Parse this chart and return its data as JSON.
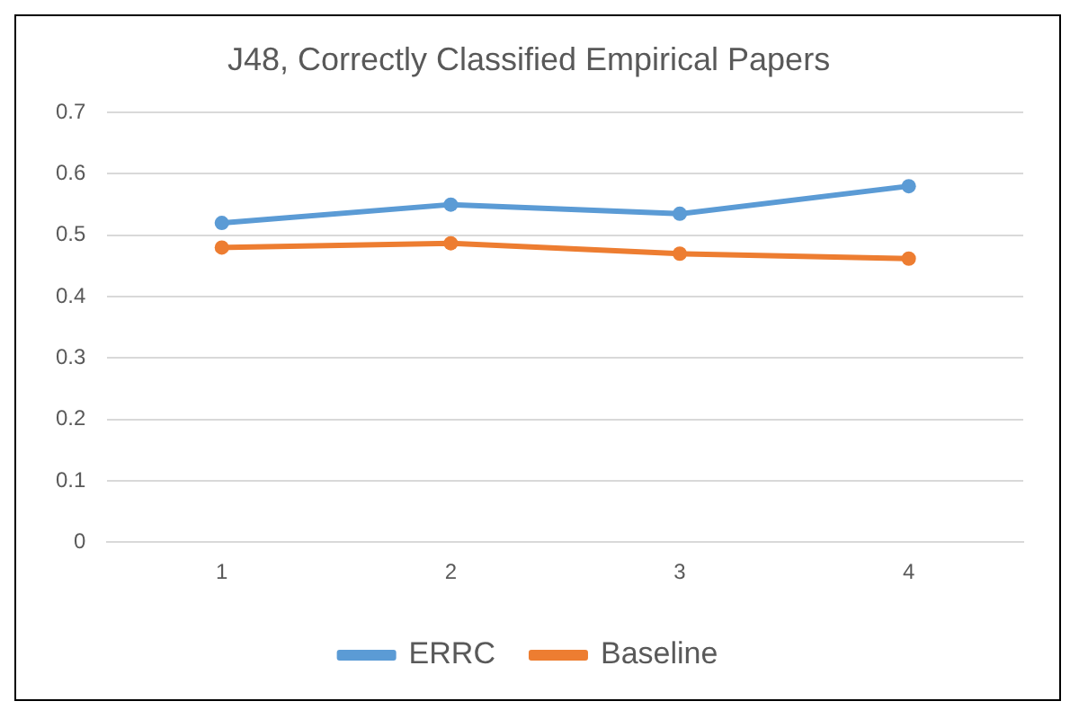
{
  "chart_data": {
    "type": "line",
    "title": "J48, Correctly Classified Empirical Papers",
    "categories": [
      "1",
      "2",
      "3",
      "4"
    ],
    "series": [
      {
        "name": "ERRC",
        "color": "#5b9bd5",
        "values": [
          0.52,
          0.55,
          0.535,
          0.58
        ]
      },
      {
        "name": "Baseline",
        "color": "#ed7d31",
        "values": [
          0.48,
          0.487,
          0.47,
          0.462
        ]
      }
    ],
    "ylim": [
      0,
      0.7
    ],
    "yticks": [
      0,
      0.1,
      0.2,
      0.3,
      0.4,
      0.5,
      0.6,
      0.7
    ],
    "grid": "y",
    "legend": "bottom",
    "marker": "circle",
    "line_style": "solid"
  }
}
